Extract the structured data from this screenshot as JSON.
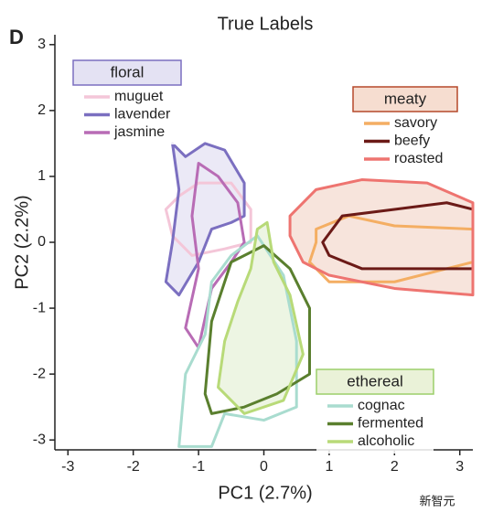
{
  "panel": "D",
  "watermark": "新智元",
  "chart_data": {
    "type": "contour",
    "title": "True Labels",
    "x_label": "PC1 (2.7%)",
    "y_label": "PC2 (2.2%)",
    "xlim": [
      -3.2,
      3.2
    ],
    "ylim": [
      -3.15,
      3.15
    ],
    "xticks": [
      -3,
      -2,
      -1,
      0,
      1,
      2,
      3
    ],
    "yticks": [
      -3,
      -2,
      -1,
      0,
      1,
      2,
      3
    ],
    "groups": [
      {
        "name": "floral",
        "color": "#7b6fc0",
        "header_fill": "#e4e2f3",
        "series": [
          {
            "name": "muguet",
            "color": "#f4c6d8",
            "x": [
              -1.5,
              -1.4,
              -1.1,
              -0.6,
              -0.2,
              -0.2,
              -0.5,
              -1.0,
              -1.3
            ],
            "y": [
              0.5,
              0.1,
              -0.2,
              -0.1,
              0.0,
              0.5,
              0.9,
              0.9,
              0.7
            ]
          },
          {
            "name": "lavender",
            "color": "#7b6fc0",
            "fill": "#e6e4f4",
            "x": [
              -1.4,
              -1.3,
              -1.4,
              -1.5,
              -1.3,
              -1.0,
              -0.8,
              -0.5,
              -0.3,
              -0.3,
              -0.6,
              -0.9,
              -1.2
            ],
            "y": [
              1.5,
              0.8,
              0.0,
              -0.6,
              -0.8,
              -0.3,
              0.2,
              0.3,
              0.4,
              0.9,
              1.4,
              1.5,
              1.3
            ]
          },
          {
            "name": "jasmine",
            "color": "#b86cb5",
            "x": [
              -1.0,
              -1.1,
              -1.0,
              -1.2,
              -1.0,
              -0.8,
              -0.5,
              -0.3,
              -0.4,
              -0.7
            ],
            "y": [
              1.2,
              0.4,
              -0.4,
              -1.3,
              -1.6,
              -0.7,
              -0.3,
              0.0,
              0.6,
              1.0
            ]
          }
        ]
      },
      {
        "name": "meaty",
        "color": "#b5482a",
        "header_fill": "#f6ddd0",
        "series": [
          {
            "name": "savory",
            "color": "#f4ae63",
            "x": [
              0.8,
              1.3,
              2.0,
              3.2,
              3.2,
              2.0,
              1.0,
              0.7,
              0.8
            ],
            "y": [
              0.2,
              0.4,
              0.25,
              0.2,
              -0.3,
              -0.6,
              -0.6,
              -0.3,
              0.0
            ]
          },
          {
            "name": "beefy",
            "color": "#6b1a17",
            "x": [
              0.9,
              1.2,
              2.0,
              2.8,
              3.2,
              3.2,
              2.5,
              1.5,
              1.0
            ],
            "y": [
              0.0,
              0.4,
              0.5,
              0.6,
              0.5,
              -0.4,
              -0.4,
              -0.4,
              -0.2
            ]
          },
          {
            "name": "roasted",
            "color": "#ee7470",
            "fill": "#f5ddd3",
            "x": [
              0.4,
              0.8,
              1.5,
              2.5,
              3.2,
              3.2,
              2.0,
              1.0,
              0.6,
              0.4
            ],
            "y": [
              0.4,
              0.8,
              0.95,
              0.9,
              0.6,
              -0.8,
              -0.7,
              -0.5,
              -0.3,
              0.1
            ]
          }
        ]
      },
      {
        "name": "ethereal",
        "color": "#9ccf6a",
        "header_fill": "#eaf2d8",
        "series": [
          {
            "name": "cognac",
            "color": "#a9dccf",
            "x": [
              -1.3,
              -1.2,
              -0.9,
              -0.8,
              -0.5,
              -0.1,
              0.3,
              0.5,
              0.5,
              0.0,
              -0.6,
              -0.8
            ],
            "y": [
              -3.1,
              -2.0,
              -1.4,
              -0.6,
              -0.2,
              0.1,
              -0.5,
              -1.5,
              -2.5,
              -2.7,
              -2.6,
              -3.1
            ]
          },
          {
            "name": "fermented",
            "color": "#5a7f2e",
            "x": [
              -0.9,
              -0.8,
              -0.5,
              0.0,
              0.4,
              0.7,
              0.7,
              0.2,
              -0.3,
              -0.8
            ],
            "y": [
              -2.3,
              -1.2,
              -0.3,
              -0.05,
              -0.4,
              -1.0,
              -2.0,
              -2.3,
              -2.5,
              -2.6
            ]
          },
          {
            "name": "alcoholic",
            "color": "#b8da78",
            "fill": "#e9f3dc",
            "x": [
              -0.1,
              0.05,
              0.15,
              0.4,
              0.6,
              0.3,
              -0.3,
              -0.7,
              -0.6,
              -0.4,
              -0.2
            ],
            "y": [
              0.2,
              0.3,
              -0.3,
              -0.8,
              -1.7,
              -2.4,
              -2.6,
              -2.2,
              -1.5,
              -0.9,
              -0.4
            ]
          }
        ]
      }
    ]
  }
}
